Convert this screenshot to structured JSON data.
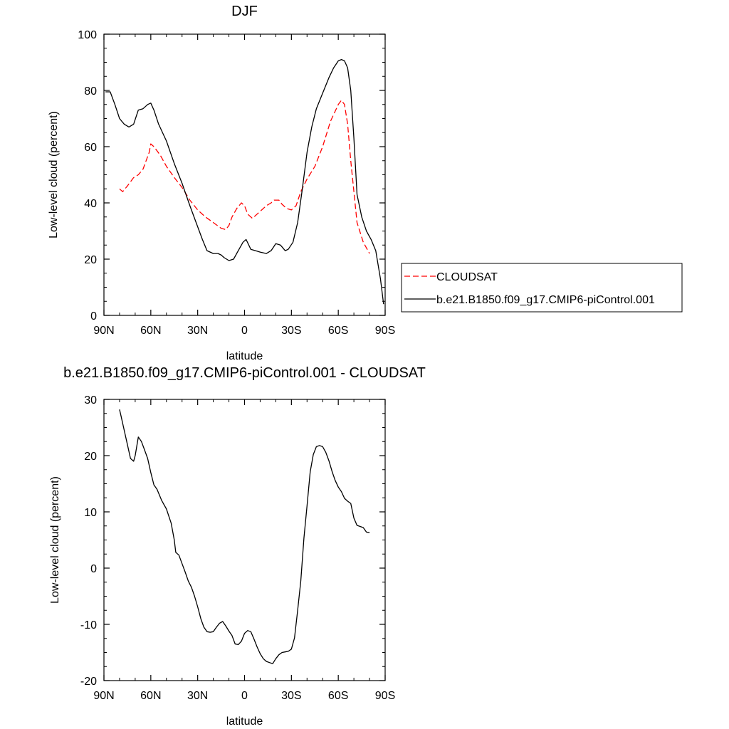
{
  "chart_data": [
    {
      "type": "line",
      "title": "DJF",
      "xlabel": "latitude",
      "ylabel": "Low-level cloud (percent)",
      "xlim": [
        90,
        -90
      ],
      "ylim": [
        0,
        100
      ],
      "xticks": [
        90,
        60,
        30,
        0,
        -30,
        -60,
        -90
      ],
      "xtick_labels": [
        "90N",
        "60N",
        "30N",
        "0",
        "30S",
        "60S",
        "90S"
      ],
      "yticks": [
        0,
        20,
        40,
        60,
        80,
        100
      ],
      "ytick_labels": [
        "0",
        "20",
        "40",
        "60",
        "80",
        "100"
      ],
      "legend": "right-bottom, outside plot",
      "series": [
        {
          "name": "CLOUDSAT",
          "color": "#ff0000",
          "style": "dashed",
          "x": [
            80,
            78,
            75,
            71,
            68,
            65,
            61,
            60,
            58,
            54,
            50,
            45,
            40,
            35,
            30,
            25,
            20,
            15,
            12,
            10,
            8,
            5,
            2,
            0,
            -2,
            -5,
            -8,
            -11,
            -14,
            -17,
            -19,
            -22,
            -24,
            -27,
            -30,
            -33,
            -36,
            -40,
            -45,
            -50,
            -55,
            -60,
            -62,
            -64,
            -66,
            -68,
            -70,
            -72,
            -76,
            -80
          ],
          "y": [
            45,
            44,
            46,
            49,
            50,
            52,
            58,
            61,
            60,
            57,
            53,
            49,
            45.5,
            41,
            37.5,
            35,
            33,
            31,
            30.5,
            32,
            35,
            38,
            40,
            39,
            36,
            34.5,
            36,
            37.5,
            39,
            40,
            41,
            41,
            39.5,
            38,
            37.5,
            39,
            44,
            48.5,
            53,
            60,
            69,
            75,
            76.5,
            75,
            68,
            55,
            44,
            33,
            26,
            22
          ]
        },
        {
          "name": "b.e21.B1850.f09_g17.CMIP6-piControl.001",
          "color": "#000000",
          "style": "solid",
          "x": [
            89,
            86,
            83,
            80,
            77,
            74,
            71,
            68,
            65,
            62,
            60,
            58,
            55,
            50,
            45,
            40,
            35,
            30,
            27,
            24,
            20,
            17,
            15,
            13,
            10,
            7,
            4,
            1,
            -1,
            -4,
            -7,
            -10,
            -14,
            -17,
            -20,
            -23,
            -26,
            -28,
            -31,
            -34,
            -37,
            -40,
            -43,
            -46,
            -50,
            -54,
            -57,
            -60,
            -62,
            -64,
            -66,
            -68,
            -70,
            -72,
            -75,
            -78,
            -81,
            -84,
            -87,
            -89
          ],
          "y": [
            79.5,
            79.5,
            75,
            70,
            68,
            67,
            68,
            73,
            73.5,
            75,
            75.5,
            73,
            68,
            62,
            54,
            47,
            39,
            31.5,
            27,
            23,
            22,
            22,
            21.5,
            20.5,
            19.5,
            20,
            23,
            26,
            27,
            23.5,
            23,
            22.5,
            22,
            23,
            25.5,
            25,
            23,
            23.5,
            26,
            33,
            45,
            58,
            67,
            73.5,
            79,
            84.5,
            88,
            90.5,
            91,
            90.5,
            88,
            80,
            63,
            43,
            35,
            30,
            27,
            23,
            13,
            4
          ]
        }
      ]
    },
    {
      "type": "line",
      "title": "b.e21.B1850.f09_g17.CMIP6-piControl.001 - CLOUDSAT",
      "xlabel": "latitude",
      "ylabel": "Low-level cloud (percent)",
      "xlim": [
        90,
        -90
      ],
      "ylim": [
        -20,
        30
      ],
      "xticks": [
        90,
        60,
        30,
        0,
        -30,
        -60,
        -90
      ],
      "xtick_labels": [
        "90N",
        "60N",
        "30N",
        "0",
        "30S",
        "60S",
        "90S"
      ],
      "yticks": [
        -20,
        -10,
        0,
        10,
        20,
        30
      ],
      "ytick_labels": [
        "-20",
        "-10",
        "0",
        "10",
        "20",
        "30"
      ],
      "series": [
        {
          "color": "#000000",
          "style": "solid",
          "x": [
            80,
            79,
            77,
            75,
            73,
            71,
            70,
            68,
            66,
            64,
            62,
            60,
            58,
            56,
            53,
            50,
            47,
            45,
            44,
            42,
            40,
            38,
            36,
            34,
            32,
            30,
            28,
            26,
            24,
            22,
            20,
            18,
            16,
            14,
            12,
            10,
            8,
            6,
            4,
            2,
            0,
            -2,
            -4,
            -6,
            -8,
            -10,
            -12,
            -14,
            -16,
            -18,
            -20,
            -22,
            -24,
            -26,
            -28,
            -30,
            -32,
            -34,
            -36,
            -38,
            -40,
            -42,
            -44,
            -46,
            -48,
            -50,
            -52,
            -54,
            -56,
            -58,
            -60,
            -62,
            -64,
            -66,
            -68,
            -70,
            -72,
            -74,
            -76,
            -78,
            -80
          ],
          "y": [
            28.2,
            27,
            24.5,
            22,
            19.5,
            19,
            20,
            23.3,
            22.5,
            21,
            19.5,
            17,
            14.8,
            14,
            12,
            10.5,
            8,
            5,
            2.8,
            2.3,
            0.8,
            -0.7,
            -2.3,
            -3.4,
            -5,
            -6.9,
            -9,
            -10.5,
            -11.3,
            -11.4,
            -11.3,
            -10.5,
            -9.8,
            -9.5,
            -10.3,
            -11.2,
            -12,
            -13.5,
            -13.6,
            -13,
            -11.6,
            -11.1,
            -11.3,
            -12.6,
            -14,
            -15.2,
            -16.1,
            -16.6,
            -16.8,
            -17,
            -16.1,
            -15.4,
            -15,
            -14.9,
            -14.8,
            -14.4,
            -12.4,
            -7.5,
            -2.3,
            5.3,
            11.1,
            17.1,
            20.2,
            21.6,
            21.8,
            21.6,
            20.6,
            19.1,
            17.2,
            15.6,
            14.4,
            13.6,
            12.4,
            11.9,
            11.5,
            8.9,
            7.6,
            7.4,
            7.2,
            6.4,
            6.3
          ]
        }
      ]
    }
  ]
}
